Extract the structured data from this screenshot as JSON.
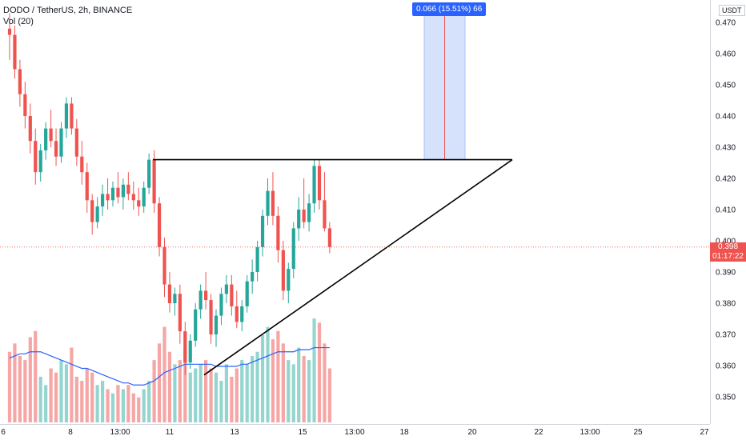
{
  "legend": {
    "symbol": "DODO / TetherUS, 2h, BINANCE",
    "volume_label": "Vol (20)"
  },
  "y_axis": {
    "unit": "USDT",
    "ticks": [
      "0.470",
      "0.460",
      "0.450",
      "0.440",
      "0.430",
      "0.420",
      "0.410",
      "0.400",
      "0.390",
      "0.380",
      "0.370",
      "0.360",
      "0.350"
    ]
  },
  "x_axis": {
    "ticks": [
      "6",
      "8",
      "13:00",
      "11",
      "13",
      "15",
      "13:00",
      "18",
      "20",
      "22",
      "13:00",
      "25",
      "27"
    ]
  },
  "last_price": {
    "value": "0.398",
    "countdown": "01:17:22"
  },
  "measure": {
    "label": "0.066 (15.51%) 66"
  },
  "colors": {
    "up": "#26a69a",
    "down": "#ef5350",
    "vol_up": "#95d5cf",
    "vol_down": "#f5a6a5",
    "vol_ma": "#2962ff",
    "measure_fill": "#d6e2fb"
  },
  "chart_data": {
    "type": "candlestick",
    "ylim": [
      0.343,
      0.4735
    ],
    "candles": [
      [
        0.468,
        0.473,
        0.458,
        0.466
      ],
      [
        0.466,
        0.469,
        0.452,
        0.455
      ],
      [
        0.455,
        0.458,
        0.443,
        0.447
      ],
      [
        0.447,
        0.451,
        0.436,
        0.44
      ],
      [
        0.44,
        0.444,
        0.428,
        0.432
      ],
      [
        0.432,
        0.436,
        0.418,
        0.422
      ],
      [
        0.422,
        0.431,
        0.419,
        0.429
      ],
      [
        0.429,
        0.438,
        0.426,
        0.436
      ],
      [
        0.436,
        0.442,
        0.43,
        0.432
      ],
      [
        0.432,
        0.436,
        0.424,
        0.427
      ],
      [
        0.427,
        0.438,
        0.425,
        0.436
      ],
      [
        0.436,
        0.446,
        0.433,
        0.444
      ],
      [
        0.444,
        0.446,
        0.434,
        0.436
      ],
      [
        0.436,
        0.439,
        0.424,
        0.427
      ],
      [
        0.427,
        0.432,
        0.418,
        0.422
      ],
      [
        0.422,
        0.425,
        0.409,
        0.413
      ],
      [
        0.413,
        0.415,
        0.402,
        0.406
      ],
      [
        0.406,
        0.414,
        0.404,
        0.411
      ],
      [
        0.411,
        0.418,
        0.408,
        0.415
      ],
      [
        0.415,
        0.42,
        0.41,
        0.413
      ],
      [
        0.413,
        0.419,
        0.411,
        0.417
      ],
      [
        0.417,
        0.422,
        0.412,
        0.414
      ],
      [
        0.414,
        0.42,
        0.41,
        0.418
      ],
      [
        0.418,
        0.422,
        0.413,
        0.415
      ],
      [
        0.415,
        0.419,
        0.41,
        0.413
      ],
      [
        0.413,
        0.417,
        0.408,
        0.411
      ],
      [
        0.411,
        0.419,
        0.409,
        0.417
      ],
      [
        0.417,
        0.428,
        0.415,
        0.426
      ],
      [
        0.426,
        0.429,
        0.409,
        0.412
      ],
      [
        0.412,
        0.414,
        0.395,
        0.398
      ],
      [
        0.398,
        0.401,
        0.382,
        0.386
      ],
      [
        0.386,
        0.39,
        0.377,
        0.38
      ],
      [
        0.38,
        0.385,
        0.376,
        0.383
      ],
      [
        0.383,
        0.386,
        0.367,
        0.371
      ],
      [
        0.371,
        0.374,
        0.357,
        0.361
      ],
      [
        0.361,
        0.37,
        0.359,
        0.368
      ],
      [
        0.368,
        0.38,
        0.366,
        0.378
      ],
      [
        0.378,
        0.386,
        0.375,
        0.384
      ],
      [
        0.384,
        0.39,
        0.378,
        0.381
      ],
      [
        0.381,
        0.383,
        0.367,
        0.37
      ],
      [
        0.37,
        0.378,
        0.366,
        0.376
      ],
      [
        0.376,
        0.385,
        0.373,
        0.383
      ],
      [
        0.383,
        0.389,
        0.38,
        0.386
      ],
      [
        0.386,
        0.389,
        0.376,
        0.379
      ],
      [
        0.379,
        0.384,
        0.372,
        0.374
      ],
      [
        0.374,
        0.381,
        0.371,
        0.379
      ],
      [
        0.379,
        0.389,
        0.377,
        0.387
      ],
      [
        0.387,
        0.394,
        0.383,
        0.39
      ],
      [
        0.39,
        0.4,
        0.387,
        0.398
      ],
      [
        0.398,
        0.41,
        0.395,
        0.408
      ],
      [
        0.408,
        0.42,
        0.405,
        0.416
      ],
      [
        0.416,
        0.422,
        0.405,
        0.408
      ],
      [
        0.408,
        0.411,
        0.393,
        0.397
      ],
      [
        0.397,
        0.4,
        0.381,
        0.384
      ],
      [
        0.384,
        0.393,
        0.38,
        0.391
      ],
      [
        0.391,
        0.406,
        0.388,
        0.404
      ],
      [
        0.404,
        0.414,
        0.4,
        0.41
      ],
      [
        0.41,
        0.42,
        0.404,
        0.406
      ],
      [
        0.406,
        0.415,
        0.403,
        0.412
      ],
      [
        0.412,
        0.426,
        0.409,
        0.424
      ],
      [
        0.424,
        0.426,
        0.41,
        0.413
      ],
      [
        0.413,
        0.422,
        0.403,
        0.404
      ],
      [
        0.404,
        0.406,
        0.396,
        0.398
      ]
    ],
    "volume": [
      34,
      38,
      32,
      30,
      41,
      44,
      22,
      18,
      26,
      24,
      30,
      28,
      36,
      22,
      20,
      26,
      24,
      18,
      20,
      16,
      14,
      18,
      16,
      18,
      14,
      12,
      16,
      20,
      30,
      38,
      46,
      34,
      28,
      30,
      36,
      24,
      26,
      28,
      30,
      26,
      24,
      20,
      28,
      22,
      26,
      30,
      28,
      32,
      34,
      42,
      46,
      40,
      44,
      38,
      30,
      28,
      36,
      32,
      30,
      50,
      48,
      38,
      26
    ],
    "volume_ma": [
      31,
      32,
      33,
      33,
      34,
      34,
      34,
      33,
      32,
      31,
      30,
      29,
      28,
      27,
      26,
      26,
      25,
      24,
      23,
      22,
      21,
      20,
      19,
      19,
      18,
      18,
      18,
      19,
      20,
      22,
      24,
      25,
      26,
      27,
      28,
      28,
      28,
      28,
      28,
      28,
      27,
      27,
      27,
      27,
      27,
      28,
      28,
      29,
      30,
      31,
      32,
      33,
      34,
      34,
      34,
      34,
      35,
      35,
      35,
      36,
      36,
      36,
      36
    ],
    "annotations": {
      "resistance_line": [
        0.426,
        0.426
      ],
      "support_line": [
        0.357,
        0.426
      ],
      "measure_range": [
        0.426,
        0.4735
      ]
    }
  }
}
